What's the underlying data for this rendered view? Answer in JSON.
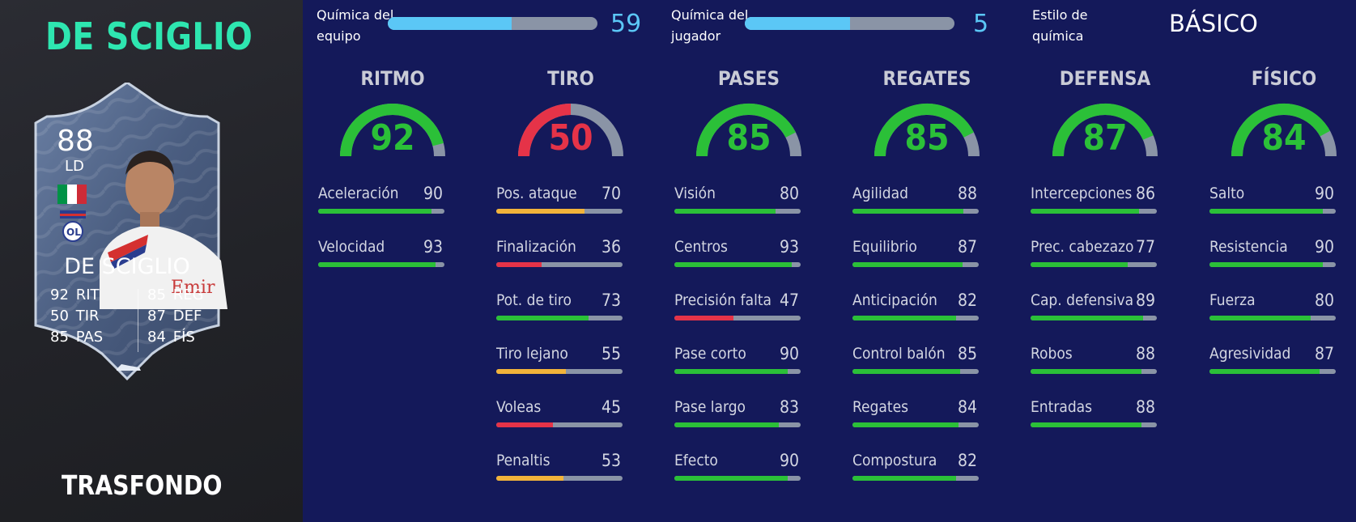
{
  "player": {
    "title": "DE SCIGLIO",
    "bottom_label": "TRASFONDO"
  },
  "card": {
    "rating": "88",
    "position": "LD",
    "name": "DE SCIGLIO",
    "stats_left": [
      {
        "value": "92",
        "label": "RIT"
      },
      {
        "value": "50",
        "label": "TIR"
      },
      {
        "value": "85",
        "label": "PAS"
      }
    ],
    "stats_right": [
      {
        "value": "85",
        "label": "REG"
      },
      {
        "value": "87",
        "label": "DEF"
      },
      {
        "value": "84",
        "label": "FÍS"
      }
    ],
    "flag_colors": [
      "#009246",
      "#ffffff",
      "#ce2b37"
    ],
    "card_color": "#4a5d80"
  },
  "chemistry": {
    "team_label_1": "Química del",
    "team_label_2": "equipo",
    "team_value": "59",
    "team_fill": 0.59,
    "player_label_1": "Química del",
    "player_label_2": "jugador",
    "player_value": "5",
    "player_fill": 0.5,
    "style_label_1": "Estilo de",
    "style_label_2": "química",
    "style_value": "BÁSICO"
  },
  "colors": {
    "green": "#2bc038",
    "red": "#e53348",
    "yellow": "#f2b33a",
    "track": "#8a94a6",
    "chem_blue": "#5bc7f6",
    "title_teal": "#2ee6b0"
  },
  "categories": [
    {
      "title": "RITMO",
      "value": 92,
      "color": "green",
      "stats": [
        {
          "label": "Aceleración",
          "value": 90,
          "color": "green"
        },
        {
          "label": "Velocidad",
          "value": 93,
          "color": "green"
        }
      ]
    },
    {
      "title": "TIRO",
      "value": 50,
      "color": "red",
      "stats": [
        {
          "label": "Pos. ataque",
          "value": 70,
          "color": "yellow"
        },
        {
          "label": "Finalización",
          "value": 36,
          "color": "red"
        },
        {
          "label": "Pot. de tiro",
          "value": 73,
          "color": "green"
        },
        {
          "label": "Tiro lejano",
          "value": 55,
          "color": "yellow"
        },
        {
          "label": "Voleas",
          "value": 45,
          "color": "red"
        },
        {
          "label": "Penaltis",
          "value": 53,
          "color": "yellow"
        }
      ]
    },
    {
      "title": "PASES",
      "value": 85,
      "color": "green",
      "stats": [
        {
          "label": "Visión",
          "value": 80,
          "color": "green"
        },
        {
          "label": "Centros",
          "value": 93,
          "color": "green"
        },
        {
          "label": "Precisión falta",
          "value": 47,
          "color": "red"
        },
        {
          "label": "Pase corto",
          "value": 90,
          "color": "green"
        },
        {
          "label": "Pase largo",
          "value": 83,
          "color": "green"
        },
        {
          "label": "Efecto",
          "value": 90,
          "color": "green"
        }
      ]
    },
    {
      "title": "REGATES",
      "value": 85,
      "color": "green",
      "stats": [
        {
          "label": "Agilidad",
          "value": 88,
          "color": "green"
        },
        {
          "label": "Equilibrio",
          "value": 87,
          "color": "green"
        },
        {
          "label": "Anticipación",
          "value": 82,
          "color": "green"
        },
        {
          "label": "Control balón",
          "value": 85,
          "color": "green"
        },
        {
          "label": "Regates",
          "value": 84,
          "color": "green"
        },
        {
          "label": "Compostura",
          "value": 82,
          "color": "green"
        }
      ]
    },
    {
      "title": "DEFENSA",
      "value": 87,
      "color": "green",
      "stats": [
        {
          "label": "Intercepciones",
          "value": 86,
          "color": "green"
        },
        {
          "label": "Prec. cabezazo",
          "value": 77,
          "color": "green"
        },
        {
          "label": "Cap. defensiva",
          "value": 89,
          "color": "green"
        },
        {
          "label": "Robos",
          "value": 88,
          "color": "green"
        },
        {
          "label": "Entradas",
          "value": 88,
          "color": "green"
        }
      ]
    },
    {
      "title": "FÍSICO",
      "value": 84,
      "color": "green",
      "stats": [
        {
          "label": "Salto",
          "value": 90,
          "color": "green"
        },
        {
          "label": "Resistencia",
          "value": 90,
          "color": "green"
        },
        {
          "label": "Fuerza",
          "value": 80,
          "color": "green"
        },
        {
          "label": "Agresividad",
          "value": 87,
          "color": "green"
        }
      ]
    }
  ]
}
